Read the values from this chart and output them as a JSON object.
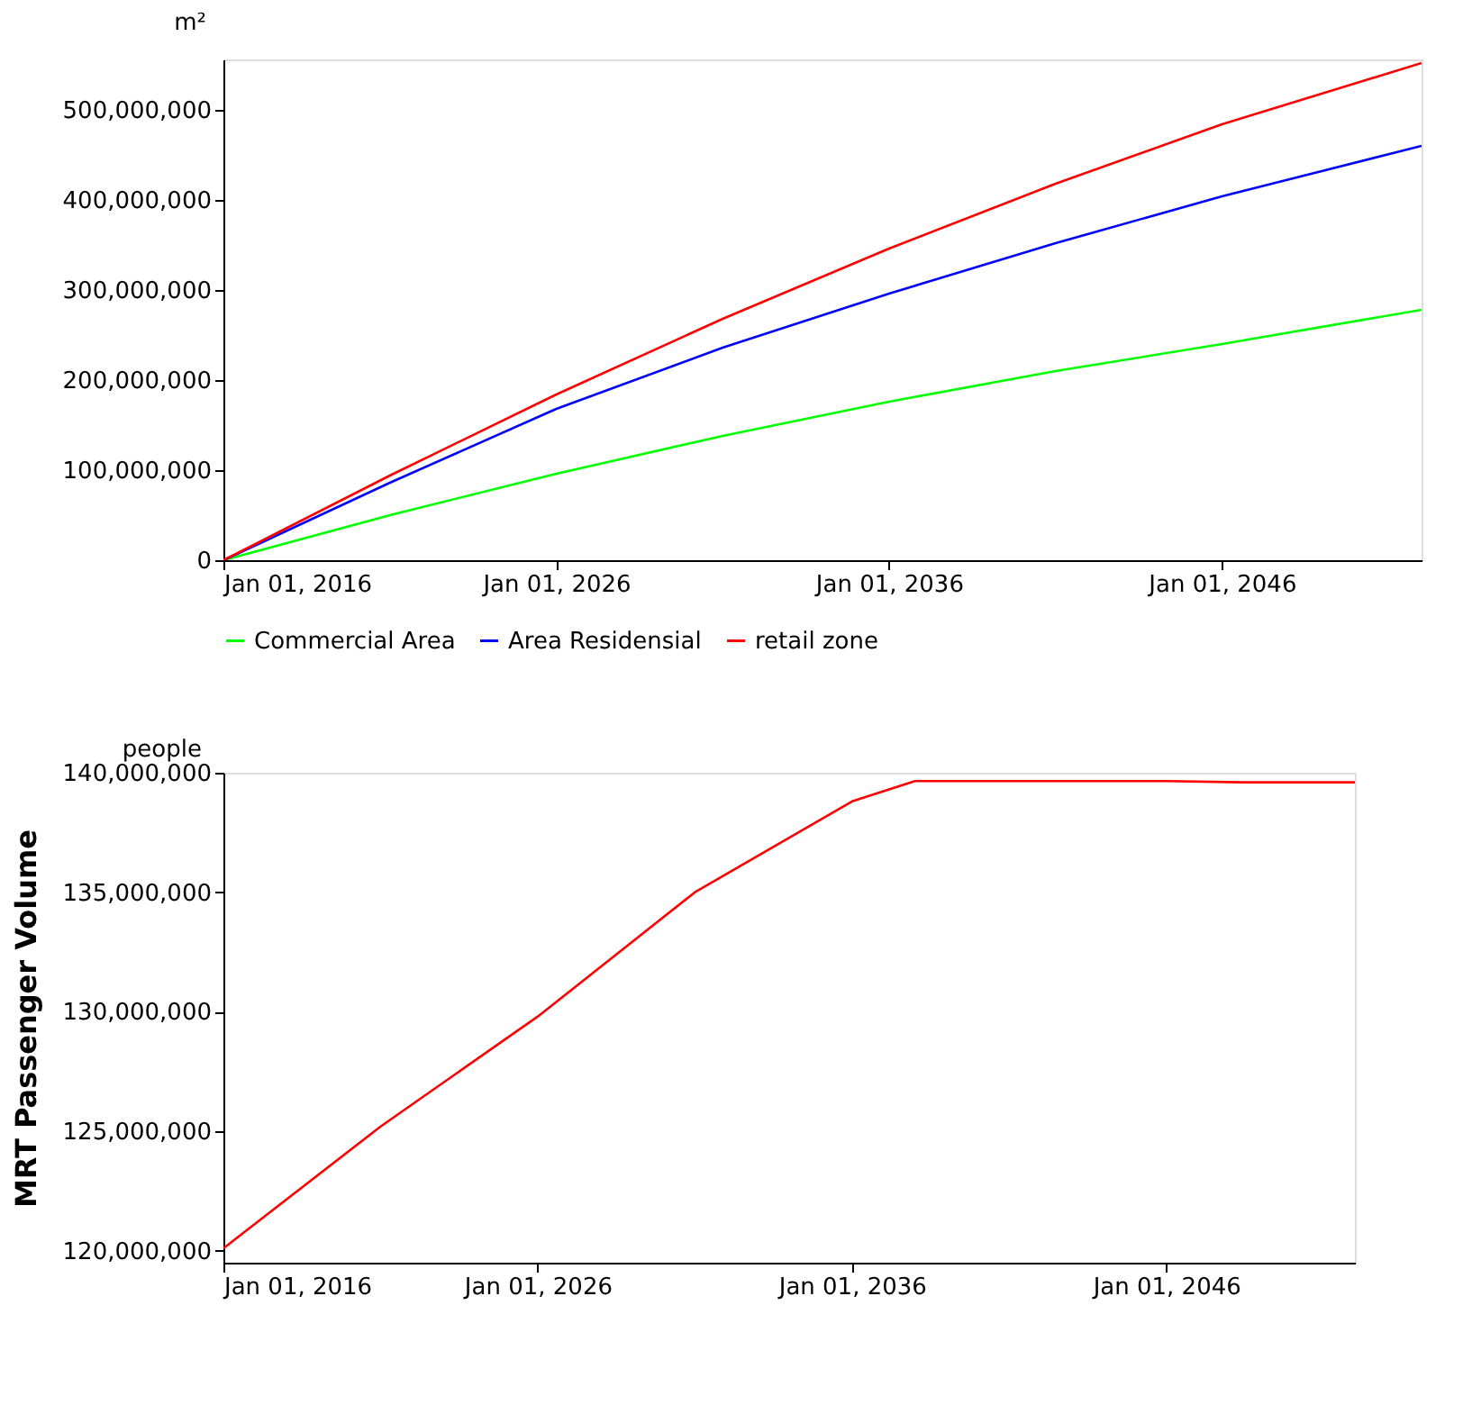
{
  "chart_data": [
    {
      "type": "line",
      "ylabel": "m²",
      "x": [
        "2016-01-01",
        "2021-01-01",
        "2026-01-01",
        "2031-01-01",
        "2036-01-01",
        "2041-01-01",
        "2046-01-01",
        "2052-01-01"
      ],
      "series": [
        {
          "name": "Commercial Area",
          "color": "#00ff00",
          "values": [
            0,
            50000000,
            96000000,
            138000000,
            176000000,
            210000000,
            240000000,
            278000000
          ]
        },
        {
          "name": "Area Residensial",
          "color": "#0000ff",
          "values": [
            0,
            86000000,
            168000000,
            236000000,
            296000000,
            352000000,
            404000000,
            460000000
          ]
        },
        {
          "name": "retail zone",
          "color": "#ff0000",
          "values": [
            0,
            94000000,
            184000000,
            268000000,
            346000000,
            418000000,
            484000000,
            552000000
          ]
        }
      ],
      "xlim": [
        "2016-01-01",
        "2052-01-01"
      ],
      "xticks": [
        {
          "value": "2016-01-01",
          "label": "Jan 01, 2016"
        },
        {
          "value": "2026-01-01",
          "label": "Jan 01, 2026"
        },
        {
          "value": "2036-01-01",
          "label": "Jan 01, 2036"
        },
        {
          "value": "2046-01-01",
          "label": "Jan 01, 2046"
        }
      ],
      "ylim": [
        0,
        556000000
      ],
      "yticks": [
        0,
        {
          "value": 100000000,
          "label": "100,000,000"
        },
        {
          "value": 200000000,
          "label": "200,000,000"
        },
        {
          "value": 300000000,
          "label": "300,000,000"
        },
        {
          "value": 400000000,
          "label": "400,000,000"
        },
        {
          "value": 500000000,
          "label": "500,000,000"
        }
      ],
      "grid": false,
      "legend": "bottom",
      "line_style": "solid",
      "marker": "none"
    },
    {
      "type": "line",
      "ylabel": "MRT Passenger Volume",
      "annotations": [
        "people"
      ],
      "x": [
        "2016-01-01",
        "2021-01-01",
        "2026-01-01",
        "2031-01-01",
        "2036-01-01",
        "2038-01-01",
        "2046-01-01",
        "2048-06-01",
        "2052-01-01"
      ],
      "series": [
        {
          "color": "#ff0000",
          "values": [
            120100000,
            125200000,
            129800000,
            135000000,
            138800000,
            139650000,
            139650000,
            139600000,
            139600000
          ]
        }
      ],
      "xlim": [
        "2016-01-01",
        "2052-01-01"
      ],
      "xticks": [
        {
          "value": "2016-01-01",
          "label": "Jan 01, 2016"
        },
        {
          "value": "2026-01-01",
          "label": "Jan 01, 2026"
        },
        {
          "value": "2036-01-01",
          "label": "Jan 01, 2036"
        },
        {
          "value": "2046-01-01",
          "label": "Jan 01, 2046"
        }
      ],
      "ylim": [
        119500000,
        140000000
      ],
      "yticks": [
        {
          "value": 120000000,
          "label": "120,000,000"
        },
        {
          "value": 125000000,
          "label": "125,000,000"
        },
        {
          "value": 130000000,
          "label": "130,000,000"
        },
        {
          "value": 135000000,
          "label": "135,000,000"
        },
        {
          "value": 140000000,
          "label": "140,000,000"
        }
      ],
      "grid": false,
      "legend": false,
      "line_style": "solid",
      "marker": "none"
    }
  ]
}
